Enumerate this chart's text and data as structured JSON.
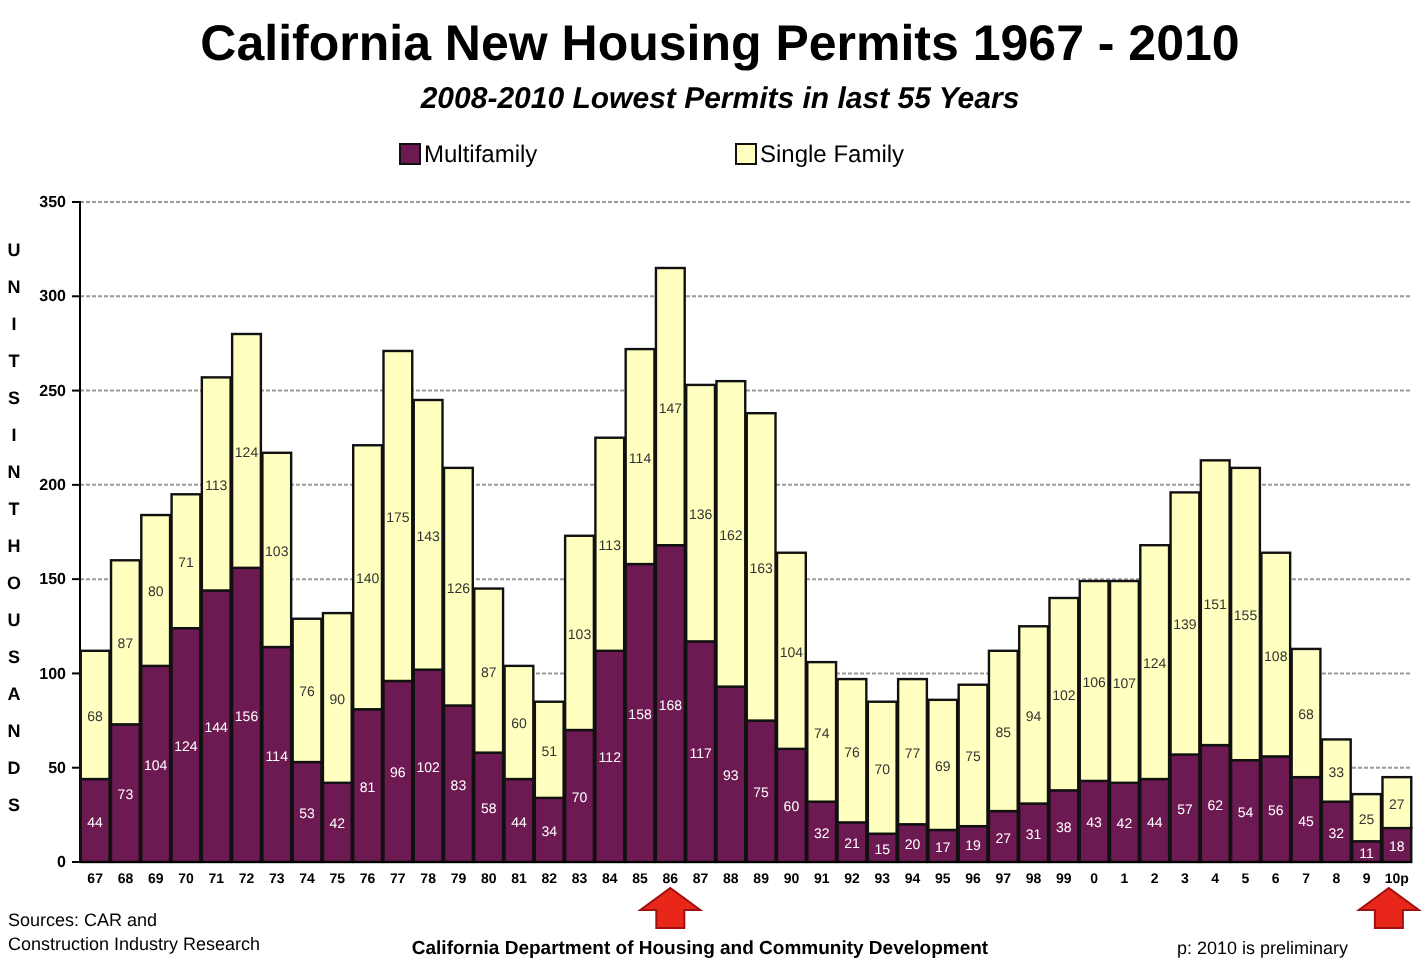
{
  "chart_data": {
    "type": "bar",
    "title": "California New Housing Permits 1967 - 2010",
    "subtitle": "2008-2010 Lowest Permits in last 55 Years",
    "ylabel": "UNITS IN THOUSANDS",
    "categories": [
      "67",
      "68",
      "69",
      "70",
      "71",
      "72",
      "73",
      "74",
      "75",
      "76",
      "77",
      "78",
      "79",
      "80",
      "81",
      "82",
      "83",
      "84",
      "85",
      "86",
      "87",
      "88",
      "89",
      "90",
      "91",
      "92",
      "93",
      "94",
      "95",
      "96",
      "97",
      "98",
      "99",
      "0",
      "1",
      "2",
      "3",
      "4",
      "5",
      "6",
      "7",
      "8",
      "9",
      "10p"
    ],
    "series": [
      {
        "name": "Multifamily",
        "color": "#6e1a52",
        "values": [
          44,
          73,
          104,
          124,
          144,
          156,
          114,
          53,
          42,
          81,
          96,
          102,
          83,
          58,
          44,
          34,
          70,
          112,
          158,
          168,
          117,
          93,
          75,
          60,
          32,
          21,
          15,
          20,
          17,
          19,
          27,
          31,
          38,
          43,
          42,
          44,
          57,
          62,
          54,
          56,
          45,
          32,
          11,
          18
        ]
      },
      {
        "name": "Single Family",
        "color": "#ffffc0",
        "values": [
          68,
          87,
          80,
          71,
          113,
          124,
          103,
          76,
          90,
          140,
          175,
          143,
          126,
          87,
          60,
          51,
          103,
          113,
          114,
          147,
          136,
          162,
          163,
          104,
          74,
          76,
          70,
          77,
          69,
          75,
          85,
          94,
          102,
          106,
          107,
          124,
          139,
          151,
          155,
          108,
          68,
          33,
          25,
          27
        ]
      }
    ],
    "stacked": true,
    "data_labels": true,
    "ylim": [
      0,
      350
    ],
    "yticks": [
      0,
      50,
      100,
      150,
      200,
      250,
      300,
      350
    ],
    "grid": "y",
    "legend": "top",
    "annotations": [
      "Sources: CAR and Construction Industry Research",
      "California Department of Housing and Community Development",
      "p: 2010 is preliminary"
    ]
  }
}
